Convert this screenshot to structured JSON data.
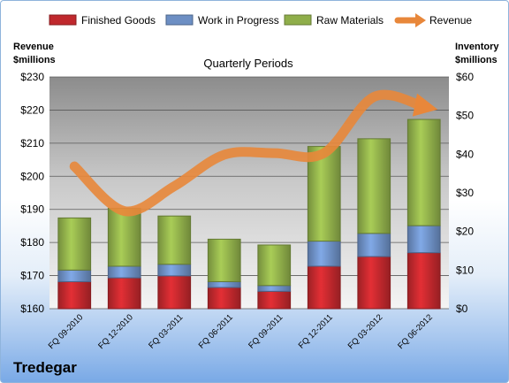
{
  "company": "Tredegar",
  "chart_data": {
    "type": "bar",
    "stacked": true,
    "title": "Quarterly Periods",
    "left_axis_title": [
      "Revenue",
      "$millions"
    ],
    "right_axis_title": [
      "Inventory",
      "$millions"
    ],
    "categories": [
      "FQ 09-2010",
      "FQ 12-2010",
      "FQ 03-2011",
      "FQ 06-2011",
      "FQ 09-2011",
      "FQ 12-2011",
      "FQ 03-2012",
      "FQ 06-2012"
    ],
    "series": [
      {
        "name": "Finished Goods",
        "axis": "right",
        "color": "#c0282d",
        "values": [
          7,
          8,
          8.5,
          5.5,
          4.5,
          11,
          13.5,
          14.5
        ]
      },
      {
        "name": "Work in Progress",
        "axis": "right",
        "color": "#6d8fc4",
        "values": [
          3,
          3,
          3,
          1.5,
          1.5,
          6.5,
          6,
          7
        ]
      },
      {
        "name": "Raw Materials",
        "axis": "right",
        "color": "#8fae4a",
        "values": [
          13.5,
          15,
          12.5,
          11,
          10.5,
          24.5,
          24.5,
          27.5
        ]
      },
      {
        "name": "Revenue",
        "axis": "left",
        "type": "line",
        "color": "#e8873a",
        "values": [
          203,
          189.5,
          197,
          206.5,
          207,
          207,
          224,
          221
        ]
      }
    ],
    "left_axis": {
      "ticks": [
        "$160",
        "$170",
        "$180",
        "$190",
        "$200",
        "$210",
        "$220",
        "$230"
      ],
      "range": [
        160,
        230
      ]
    },
    "right_axis": {
      "ticks": [
        "$0",
        "$10",
        "$20",
        "$30",
        "$40",
        "$50",
        "$60"
      ],
      "range": [
        0,
        60
      ]
    },
    "grid": true,
    "legend_position": "top"
  }
}
